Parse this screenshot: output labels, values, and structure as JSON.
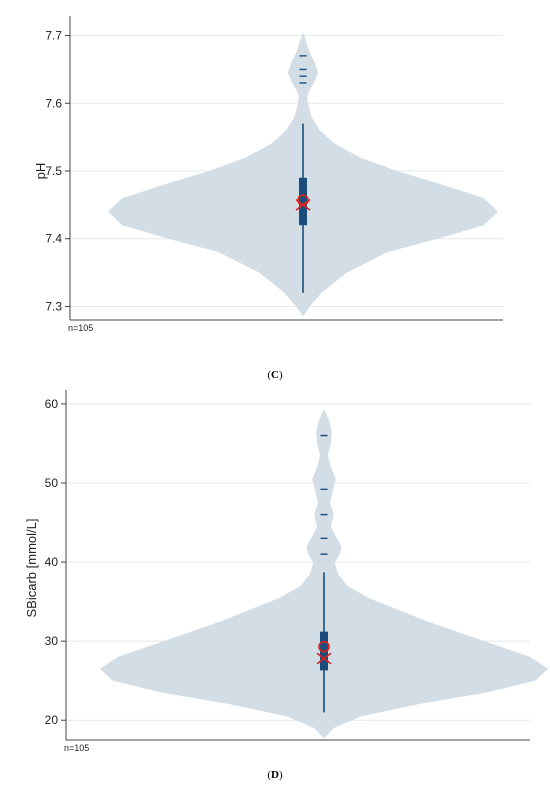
{
  "chart_data": [
    {
      "type": "violin",
      "ylabel": "pH",
      "ylim": [
        7.28,
        7.72
      ],
      "yticks": [
        7.3,
        7.4,
        7.5,
        7.6,
        7.7
      ],
      "ytick_labels": [
        "7.3",
        "7.4",
        "7.5",
        "7.6",
        "7.7"
      ],
      "grid": true,
      "n_note": "n=105",
      "caption_prefix": "(",
      "caption_letter": "C",
      "caption_suffix": ")",
      "density": [
        [
          7.285,
          0
        ],
        [
          7.3,
          8
        ],
        [
          7.32,
          22
        ],
        [
          7.35,
          52
        ],
        [
          7.38,
          100
        ],
        [
          7.4,
          160
        ],
        [
          7.42,
          215
        ],
        [
          7.44,
          232
        ],
        [
          7.46,
          215
        ],
        [
          7.48,
          165
        ],
        [
          7.5,
          112
        ],
        [
          7.52,
          68
        ],
        [
          7.54,
          38
        ],
        [
          7.56,
          20
        ],
        [
          7.58,
          10
        ],
        [
          7.6,
          6
        ],
        [
          7.61,
          5
        ],
        [
          7.62,
          8
        ],
        [
          7.63,
          13
        ],
        [
          7.645,
          18
        ],
        [
          7.66,
          14
        ],
        [
          7.675,
          8
        ],
        [
          7.69,
          4
        ],
        [
          7.705,
          0
        ]
      ],
      "box": {
        "whisker_low": 7.32,
        "q1": 7.42,
        "q3": 7.49,
        "whisker_high": 7.57
      },
      "median": 7.45,
      "mean": 7.457,
      "outliers": [
        7.63,
        7.64,
        7.65,
        7.67
      ],
      "colors": {
        "violin": "#d2dde6",
        "box": "#1a4d7c",
        "marker": "#e0221a",
        "grid": "#e3e9ef",
        "axis": "#444444"
      }
    },
    {
      "type": "violin",
      "ylabel": "SBicarb [mmol/L]",
      "ylim": [
        17.5,
        61
      ],
      "yticks": [
        20,
        30,
        40,
        50,
        60
      ],
      "ytick_labels": [
        "20",
        "30",
        "40",
        "50",
        "60"
      ],
      "grid": true,
      "n_note": "n=105",
      "caption_prefix": "(",
      "caption_letter": "D",
      "caption_suffix": ")",
      "density": [
        [
          17.7,
          0
        ],
        [
          19,
          10
        ],
        [
          20.5,
          38
        ],
        [
          22,
          95
        ],
        [
          23.5,
          165
        ],
        [
          25,
          215
        ],
        [
          26.5,
          228
        ],
        [
          28,
          210
        ],
        [
          29.5,
          175
        ],
        [
          31,
          140
        ],
        [
          32.5,
          105
        ],
        [
          34,
          75
        ],
        [
          35.5,
          45
        ],
        [
          37,
          24
        ],
        [
          38.5,
          14
        ],
        [
          40,
          11
        ],
        [
          41,
          16
        ],
        [
          42,
          18
        ],
        [
          43,
          13
        ],
        [
          44.5,
          7
        ],
        [
          46,
          10
        ],
        [
          47.5,
          6
        ],
        [
          49,
          9
        ],
        [
          50.5,
          12
        ],
        [
          52,
          7
        ],
        [
          53.5,
          4
        ],
        [
          55,
          7
        ],
        [
          56.5,
          8
        ],
        [
          58,
          5
        ],
        [
          59.3,
          0
        ]
      ],
      "box": {
        "whisker_low": 21,
        "q1": 26.3,
        "q3": 31.2,
        "whisker_high": 38.7
      },
      "median": 27.8,
      "mean": 29.3,
      "outliers": [
        41,
        43,
        46,
        49.2,
        56
      ],
      "colors": {
        "violin": "#d2dde6",
        "box": "#1a4d7c",
        "marker": "#e0221a",
        "grid": "#e3e9ef",
        "axis": "#444444"
      }
    }
  ]
}
